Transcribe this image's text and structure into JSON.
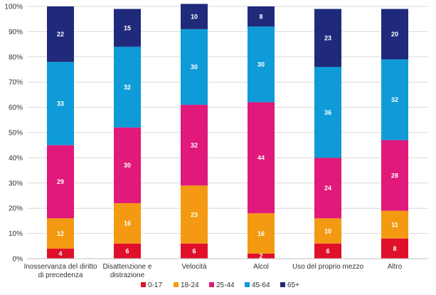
{
  "chart_data": {
    "type": "bar",
    "stacked": true,
    "categories": [
      [
        "Inosservanza del diritto",
        "di precedenza"
      ],
      [
        "Disattenzione e",
        "distrazione"
      ],
      [
        "Velocità"
      ],
      [
        "Alcol"
      ],
      [
        "Uso del proprio mezzo"
      ],
      [
        "Altro"
      ]
    ],
    "series": [
      {
        "name": "0-17",
        "color": "#e0102a",
        "values": [
          4,
          6,
          6,
          2,
          6,
          8
        ]
      },
      {
        "name": "18-24",
        "color": "#f39a12",
        "values": [
          12,
          16,
          23,
          16,
          10,
          11
        ]
      },
      {
        "name": "25-44",
        "color": "#e0197a",
        "values": [
          29,
          30,
          32,
          44,
          24,
          28
        ]
      },
      {
        "name": "45-64",
        "color": "#0f9bd7",
        "values": [
          33,
          32,
          30,
          30,
          36,
          32
        ]
      },
      {
        "name": "65+",
        "color": "#1f2a7a",
        "values": [
          22,
          15,
          10,
          8,
          23,
          20
        ]
      }
    ],
    "ylim": [
      0,
      100
    ],
    "yticks": [
      "0%",
      "10%",
      "20%",
      "30%",
      "40%",
      "50%",
      "60%",
      "70%",
      "80%",
      "90%",
      "100%"
    ],
    "grid": true,
    "legend_position": "bottom"
  }
}
